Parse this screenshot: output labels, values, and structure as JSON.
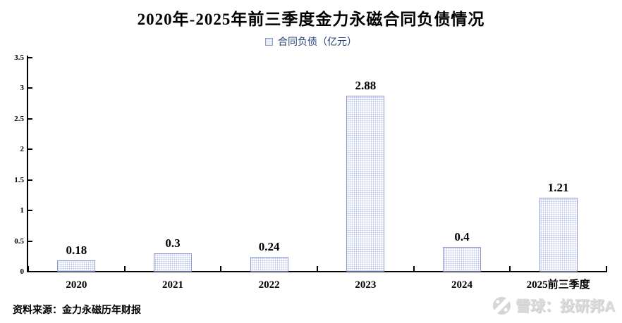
{
  "header": {
    "title": "2020年-2025年前三季度金力永磁合同负债情况"
  },
  "legend": {
    "label": "合同负债（亿元）",
    "marker": "dotted-square",
    "text_color": "#27407e"
  },
  "chart_data": {
    "type": "bar",
    "title": "2020年-2025年前三季度金力永磁合同负债情况",
    "categories": [
      "2020",
      "2021",
      "2022",
      "2023",
      "2024",
      "2025前三季度"
    ],
    "values": [
      0.18,
      0.3,
      0.24,
      2.88,
      0.4,
      1.21
    ],
    "value_labels": [
      "0.18",
      "0.3",
      "0.24",
      "2.88",
      "0.4",
      "1.21"
    ],
    "series_name": "合同负债（亿元）",
    "xlabel": "",
    "ylabel": "",
    "ylim": [
      0,
      3.5
    ],
    "y_tick_step": 0.5,
    "y_tick_labels": [
      "0",
      "0.5",
      "1",
      "1.5",
      "2",
      "2.5",
      "3",
      "3.5"
    ],
    "grid": false,
    "legend_position": "top",
    "bar_border_color": "#8e9bd3",
    "bar_fill_style": "light dotted pattern",
    "bar_fill_dot_color": "#b9c4ea",
    "axis_color": "#000000"
  },
  "footer": {
    "source": "资料来源：金力永磁历年财报"
  },
  "watermark": {
    "logo": "xueqiu-logo",
    "text": "雪球：投研邦A"
  }
}
